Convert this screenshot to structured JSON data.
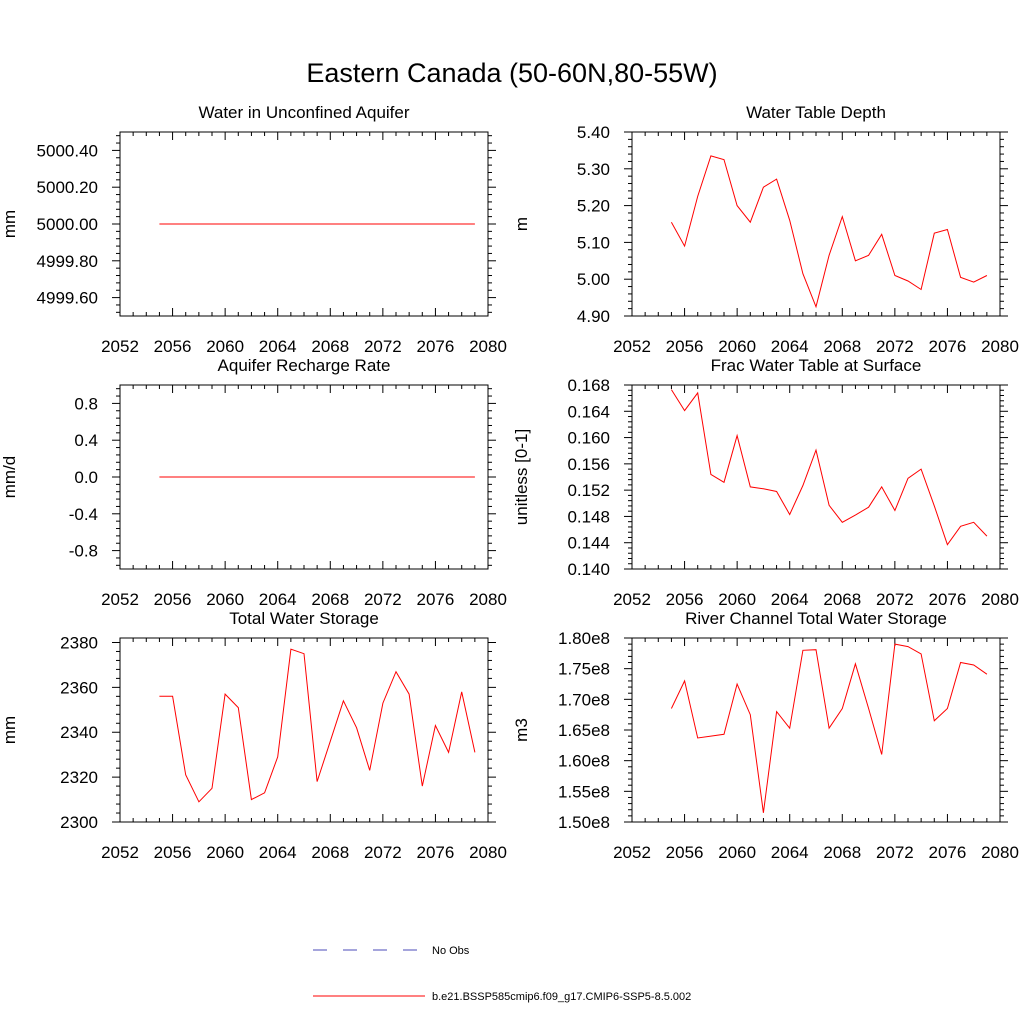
{
  "figure": {
    "title": "Eastern Canada (50-60N,80-55W)"
  },
  "legend": {
    "items": [
      {
        "label": "No Obs",
        "color": "#4b4bb8",
        "style": "dashed"
      },
      {
        "label": "b.e21.BSSP585cmip6.f09_g17.CMIP6-SSP5-8.5.002",
        "color": "#ff0000",
        "style": "solid"
      }
    ]
  },
  "chart_data": [
    {
      "type": "line",
      "title": "Water in Unconfined Aquifer",
      "ylabel": "mm",
      "xlim": [
        2052,
        2080
      ],
      "ylim": [
        4999.5,
        5000.5
      ],
      "xticks": [
        "2052",
        "2056",
        "2060",
        "2064",
        "2068",
        "2072",
        "2076",
        "2080"
      ],
      "yticks": [
        "4999.60",
        "4999.80",
        "5000.00",
        "5000.20",
        "5000.40"
      ],
      "series": [
        {
          "color": "#ff0000",
          "x": [
            2055,
            2079
          ],
          "y": [
            5000.0,
            5000.0
          ]
        }
      ]
    },
    {
      "type": "line",
      "title": "Water Table Depth",
      "ylabel": "m",
      "xlim": [
        2052,
        2080
      ],
      "ylim": [
        4.9,
        5.4
      ],
      "xticks": [
        "2052",
        "2056",
        "2060",
        "2064",
        "2068",
        "2072",
        "2076",
        "2080"
      ],
      "yticks": [
        "4.90",
        "5.00",
        "5.10",
        "5.20",
        "5.30",
        "5.40"
      ],
      "series": [
        {
          "color": "#ff0000",
          "x": [
            2055,
            2056,
            2057,
            2058,
            2059,
            2060,
            2061,
            2062,
            2063,
            2064,
            2065,
            2066,
            2067,
            2068,
            2069,
            2070,
            2071,
            2072,
            2073,
            2074,
            2075,
            2076,
            2077,
            2078,
            2079
          ],
          "y": [
            5.155,
            5.09,
            5.225,
            5.335,
            5.325,
            5.2,
            5.155,
            5.25,
            5.272,
            5.16,
            5.015,
            4.925,
            5.065,
            5.17,
            5.05,
            5.065,
            5.122,
            5.01,
            4.995,
            4.972,
            5.125,
            5.135,
            5.005,
            4.992,
            5.01
          ]
        }
      ]
    },
    {
      "type": "line",
      "title": "Aquifer Recharge Rate",
      "ylabel": "mm/d",
      "xlim": [
        2052,
        2080
      ],
      "ylim": [
        -1,
        1
      ],
      "xticks": [
        "2052",
        "2056",
        "2060",
        "2064",
        "2068",
        "2072",
        "2076",
        "2080"
      ],
      "yticks": [
        "-0.8",
        "-0.4",
        "0.0",
        "0.4",
        "0.8"
      ],
      "series": [
        {
          "color": "#ff0000",
          "x": [
            2055,
            2079
          ],
          "y": [
            0.0,
            0.0
          ]
        }
      ]
    },
    {
      "type": "line",
      "title": "Frac Water Table at Surface",
      "ylabel": "unitless [0-1]",
      "xlim": [
        2052,
        2080
      ],
      "ylim": [
        0.14,
        0.168
      ],
      "xticks": [
        "2052",
        "2056",
        "2060",
        "2064",
        "2068",
        "2072",
        "2076",
        "2080"
      ],
      "yticks": [
        "0.140",
        "0.144",
        "0.148",
        "0.152",
        "0.156",
        "0.160",
        "0.164",
        "0.168"
      ],
      "series": [
        {
          "color": "#ff0000",
          "x": [
            2055,
            2056,
            2057,
            2058,
            2059,
            2060,
            2061,
            2062,
            2063,
            2064,
            2065,
            2066,
            2067,
            2068,
            2069,
            2070,
            2071,
            2072,
            2073,
            2074,
            2075,
            2076,
            2077,
            2078,
            2079
          ],
          "y": [
            0.1673,
            0.1641,
            0.1668,
            0.1544,
            0.1532,
            0.1603,
            0.1525,
            0.1522,
            0.1518,
            0.1483,
            0.1527,
            0.1581,
            0.1497,
            0.1471,
            0.1482,
            0.1494,
            0.1525,
            0.1489,
            0.1538,
            0.1552,
            0.1496,
            0.1437,
            0.1465,
            0.1471,
            0.145
          ]
        }
      ]
    },
    {
      "type": "line",
      "title": "Total Water Storage",
      "ylabel": "mm",
      "xlim": [
        2052,
        2080
      ],
      "ylim": [
        2300,
        2382
      ],
      "xticks": [
        "2052",
        "2056",
        "2060",
        "2064",
        "2068",
        "2072",
        "2076",
        "2080"
      ],
      "yticks": [
        "2300",
        "2320",
        "2340",
        "2360",
        "2380"
      ],
      "series": [
        {
          "color": "#ff0000",
          "x": [
            2055,
            2056,
            2057,
            2058,
            2059,
            2060,
            2061,
            2062,
            2063,
            2064,
            2065,
            2066,
            2067,
            2068,
            2069,
            2070,
            2071,
            2072,
            2073,
            2074,
            2075,
            2076,
            2077,
            2078,
            2079
          ],
          "y": [
            2356,
            2356,
            2321,
            2309,
            2315,
            2357,
            2351,
            2310,
            2313,
            2329,
            2377,
            2375,
            2318,
            2336,
            2354,
            2342,
            2323,
            2353,
            2367,
            2357,
            2316,
            2343,
            2331,
            2358,
            2331
          ]
        }
      ]
    },
    {
      "type": "line",
      "title": "River Channel Total Water Storage",
      "ylabel": "m3",
      "xlim": [
        2052,
        2080
      ],
      "ylim": [
        150000000,
        180000000
      ],
      "xticks": [
        "2052",
        "2056",
        "2060",
        "2064",
        "2068",
        "2072",
        "2076",
        "2080"
      ],
      "yticks": [
        "1.50e8",
        "1.55e8",
        "1.60e8",
        "1.65e8",
        "1.70e8",
        "1.75e8",
        "1.80e8"
      ],
      "series": [
        {
          "color": "#ff0000",
          "x": [
            2055,
            2056,
            2057,
            2058,
            2059,
            2060,
            2061,
            2062,
            2063,
            2064,
            2065,
            2066,
            2067,
            2068,
            2069,
            2070,
            2071,
            2072,
            2073,
            2074,
            2075,
            2076,
            2077,
            2078,
            2079
          ],
          "y": [
            168500000,
            173000000,
            163700000,
            164000000,
            164300000,
            172500000,
            167500000,
            151500000,
            168000000,
            165300000,
            178000000,
            178100000,
            165300000,
            168500000,
            175800000,
            168500000,
            161000000,
            179000000,
            178600000,
            177400000,
            166500000,
            168500000,
            176000000,
            175600000,
            174100000
          ]
        }
      ]
    }
  ]
}
